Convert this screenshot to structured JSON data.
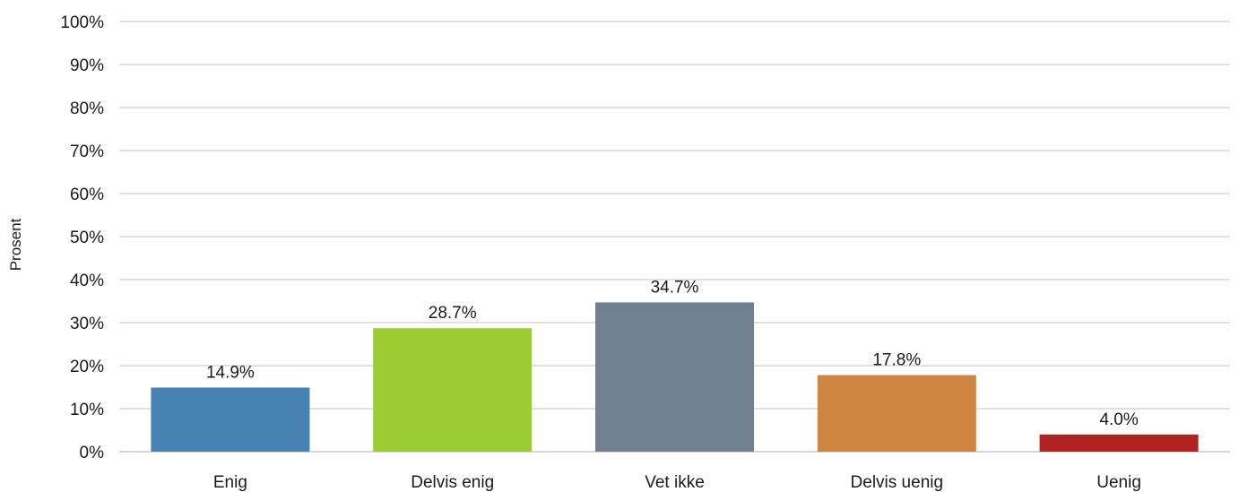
{
  "chart_data": {
    "type": "bar",
    "categories": [
      "Enig",
      "Delvis enig",
      "Vet ikke",
      "Delvis uenig",
      "Uenig"
    ],
    "values": [
      14.9,
      28.7,
      34.7,
      17.8,
      4.0
    ],
    "data_labels": [
      "14.9%",
      "28.7%",
      "34.7%",
      "17.8%",
      "4.0%"
    ],
    "bar_colors": [
      "#4682b4",
      "#9acd32",
      "#708090",
      "#cd853f",
      "#b22222"
    ],
    "ylabel": "Prosent",
    "xlabel": "",
    "ylim": [
      0,
      100
    ],
    "yticks": [
      0,
      10,
      20,
      30,
      40,
      50,
      60,
      70,
      80,
      90,
      100
    ],
    "ytick_labels": [
      "0%",
      "10%",
      "20%",
      "30%",
      "40%",
      "50%",
      "60%",
      "70%",
      "80%",
      "90%",
      "100%"
    ],
    "grid": true,
    "legend": "none"
  }
}
